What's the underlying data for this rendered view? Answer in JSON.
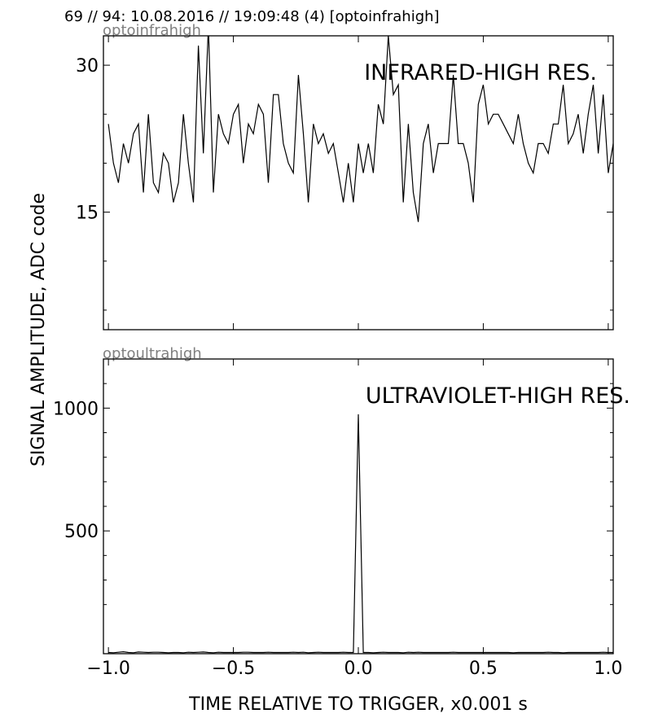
{
  "header": "69 // 94:   10.08.2016 // 19:09:48 (4)  [optoinfrahigh]",
  "ylabel": "SIGNAL AMPLITUDE,  ADC code",
  "xlabel": "TIME RELATIVE TO TRIGGER,   x0.001 s",
  "chart_data": [
    {
      "type": "line",
      "channel": "optoinfrahigh",
      "title": "INFRARED-HIGH RES.",
      "xlim": [
        -1.02,
        1.02
      ],
      "ylim": [
        3,
        33
      ],
      "yticks": [
        15,
        30
      ],
      "ytick_labels": [
        "15",
        "30"
      ],
      "xticks": [
        -1.0,
        -0.5,
        0.0,
        0.5,
        1.0
      ],
      "xtick_labels": [],
      "x_start": -1.0,
      "x_step": 0.02,
      "series": [
        {
          "values": [
            24,
            20,
            18,
            22,
            20,
            23,
            24,
            17,
            25,
            18,
            17,
            21,
            20,
            16,
            18,
            25,
            20,
            16,
            32,
            21,
            34,
            17,
            25,
            23,
            22,
            25,
            26,
            20,
            24,
            23,
            26,
            25,
            18,
            27,
            27,
            22,
            20,
            19,
            29,
            23,
            16,
            24,
            22,
            23,
            21,
            22,
            19,
            16,
            20,
            16,
            22,
            19,
            22,
            19,
            26,
            24,
            33,
            27,
            28,
            16,
            24,
            17,
            14,
            22,
            24,
            19,
            22,
            22,
            22,
            29,
            22,
            22,
            20,
            16,
            26,
            28,
            24,
            25,
            25,
            24,
            23,
            22,
            25,
            22,
            20,
            19,
            22,
            22,
            21,
            24,
            24,
            28,
            22,
            23,
            25,
            21,
            25,
            28,
            21,
            27,
            19,
            22
          ]
        }
      ]
    },
    {
      "type": "line",
      "channel": "optoultrahigh",
      "title": "ULTRAVIOLET-HIGH RES.",
      "xlim": [
        -1.02,
        1.02
      ],
      "ylim": [
        0,
        1200
      ],
      "yticks": [
        500,
        1000
      ],
      "ytick_labels": [
        "500",
        "1000"
      ],
      "xticks": [
        -1.0,
        -0.5,
        0.0,
        0.5,
        1.0
      ],
      "xtick_labels": [
        "−1.0",
        "−0.5",
        "0.0",
        "0.5",
        "1.0"
      ],
      "x_start": -1.0,
      "x_step": 0.02,
      "series": [
        {
          "values": [
            5,
            4,
            6,
            8,
            5,
            4,
            7,
            6,
            5,
            6,
            6,
            5,
            4,
            5,
            5,
            4,
            6,
            5,
            6,
            7,
            5,
            4,
            6,
            5,
            5,
            5,
            5,
            6,
            6,
            5,
            5,
            5,
            6,
            5,
            5,
            5,
            5,
            6,
            5,
            6,
            4,
            5,
            6,
            5,
            5,
            5,
            5,
            6,
            5,
            5,
            975,
            5,
            5,
            4,
            5,
            6,
            5,
            5,
            5,
            4,
            6,
            5,
            6,
            5,
            5,
            5,
            5,
            5,
            5,
            6,
            5,
            5,
            5,
            5,
            5,
            5,
            5,
            5,
            5,
            5,
            5,
            4,
            5,
            5,
            5,
            5,
            5,
            5,
            6,
            5,
            5,
            4,
            5,
            5,
            5,
            5,
            5,
            5,
            5,
            6,
            5,
            5
          ]
        }
      ]
    }
  ]
}
